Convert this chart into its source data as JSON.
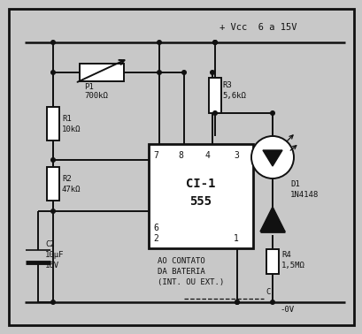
{
  "bg_color": "#c8c8c8",
  "line_color": "#111111",
  "text_color": "#111111",
  "vcc_label": "+ Vcc  6 a 15V",
  "r1_l1": "R1",
  "r1_l2": "10kΩ",
  "r2_l1": "R2",
  "r2_l2": "47kΩ",
  "r3_l1": "R3",
  "r3_l2": "5,6kΩ",
  "r4_l1": "R4",
  "r4_l2": "1,5MΩ",
  "p1_l1": "P1",
  "p1_l2": "700kΩ",
  "c2_l1": "C2",
  "c2_l2": "10μF",
  "c2_l3": "16V",
  "d1_l1": "D1",
  "d1_l2": "1N4148",
  "ci_l1": "CI-1",
  "ci_l2": "555",
  "bot_l1": "AO CONTATO",
  "bot_l2": "DA BATERIA",
  "bot_l3": "(INT. OU EXT.)",
  "gnd_label": "-0V",
  "c_label": "C",
  "p7": "7",
  "p8": "8",
  "p4": "4",
  "p3": "3",
  "p6": "6",
  "p2": "2",
  "p1p": "1",
  "figsize": [
    4.1,
    3.78
  ],
  "dpi": 100
}
